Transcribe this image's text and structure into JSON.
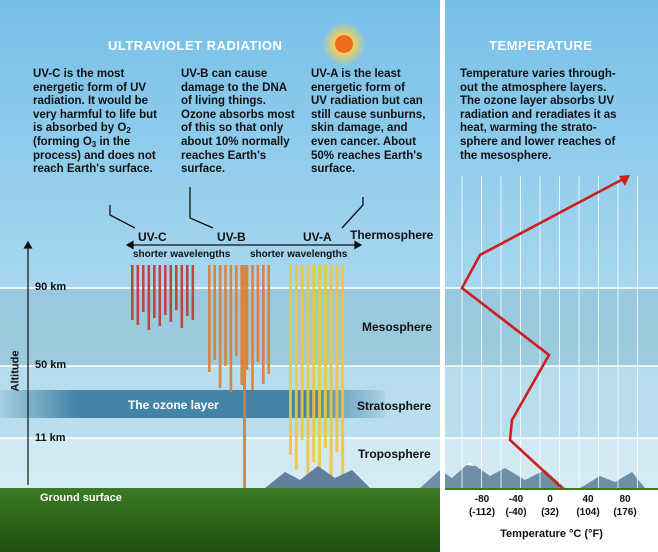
{
  "left_panel": {
    "title": "ULTRAVIOLET RADIATION",
    "uvc_text": [
      "UV-C is the most",
      "energetic form of UV",
      "radiation. It would be",
      "very harmful to life but",
      "is absorbed by O",
      "(forming O",
      " in the",
      "process) and does not",
      "reach Earth's surface."
    ],
    "uvc_sub_2": "2",
    "uvc_sub_3": "3",
    "uvb_text": [
      "UV-B can cause",
      "damage to the DNA",
      "of living things.",
      "Ozone absorbs most",
      "of this so that only",
      "about 10% normally",
      "reaches Earth's",
      "surface."
    ],
    "uva_text": [
      "UV-A is the least",
      "energetic form of",
      "UV radiation but can",
      "still cause sunburns,",
      "skin damage, and",
      "even cancer. About",
      "50% reaches Earth's",
      "surface."
    ],
    "uv_labels": [
      "UV-C",
      "UV-B",
      "UV-A"
    ],
    "wavelength_labels": [
      "shorter wavelengths",
      "shorter wavelengths"
    ],
    "layers": [
      "Thermosphere",
      "Mesosphere",
      "Stratosphere",
      "Troposphere"
    ],
    "ozone_label": "The ozone layer",
    "altitudes": [
      "90 km",
      "50 km",
      "11 km"
    ],
    "altitude_axis": "Altitude",
    "ground": "Ground surface"
  },
  "right_panel": {
    "title": "TEMPERATURE",
    "text": [
      "Temperature varies through-",
      "out the atmosphere layers.",
      "The ozone layer absorbs UV",
      "radiation and reradiates it as",
      "heat, warming the strato-",
      "sphere and lower reaches of",
      "the mesosphere."
    ],
    "ticks_c": [
      "-80",
      "-40",
      "0",
      "40",
      "80"
    ],
    "ticks_f": [
      "(-112)",
      "(-40)",
      "(32)",
      "(104)",
      "(176)"
    ],
    "axis_label": "Temperature °C (°F)"
  },
  "colors": {
    "sky_top": "#7cc3e8",
    "mesosphere_band": "#8bbdd0",
    "ozone_band": "#3d7fa3",
    "ground": "#2f6e1a",
    "uvc": "#c0362c",
    "uvb": "#e07b30",
    "uva": "#f2c43f",
    "temperature_line": "#cc1f1f"
  }
}
